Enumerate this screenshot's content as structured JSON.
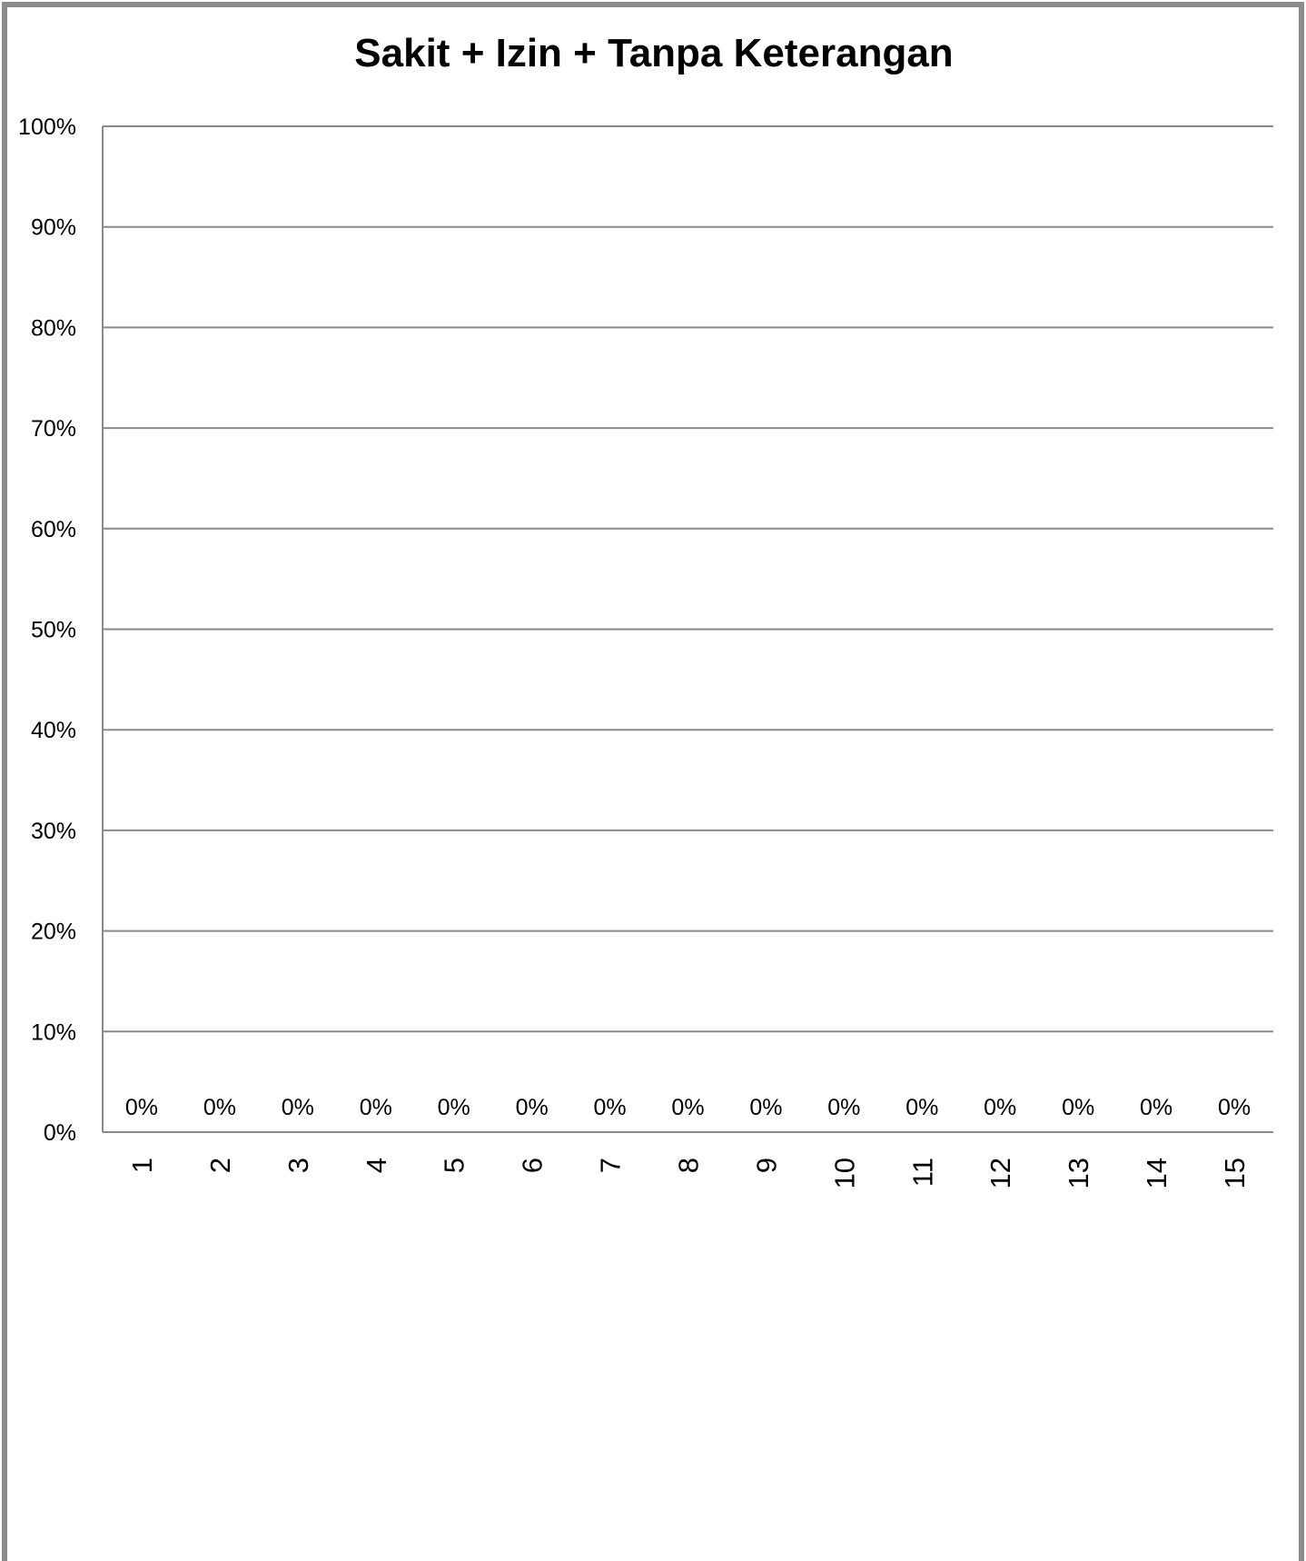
{
  "chart_data": {
    "type": "bar",
    "title": "Sakit + Izin + Tanpa Keterangan",
    "categories": [
      "1",
      "2",
      "3",
      "4",
      "5",
      "6",
      "7",
      "8",
      "9",
      "10",
      "11",
      "12",
      "13",
      "14",
      "15"
    ],
    "values": [
      0,
      0,
      0,
      0,
      0,
      0,
      0,
      0,
      0,
      0,
      0,
      0,
      0,
      0,
      0
    ],
    "data_labels": [
      "0%",
      "0%",
      "0%",
      "0%",
      "0%",
      "0%",
      "0%",
      "0%",
      "0%",
      "0%",
      "0%",
      "0%",
      "0%",
      "0%",
      "0%"
    ],
    "y_ticks": [
      0,
      10,
      20,
      30,
      40,
      50,
      60,
      70,
      80,
      90,
      100
    ],
    "y_tick_labels": [
      "0%",
      "10%",
      "20%",
      "30%",
      "40%",
      "50%",
      "60%",
      "70%",
      "80%",
      "90%",
      "100%"
    ],
    "ylim": [
      0,
      100
    ],
    "y_unit": "percent",
    "xlabel": "",
    "ylabel": "",
    "grid": true,
    "legend": "none",
    "x_tick_rotation": "vertical",
    "colors": {
      "gridline": "#898989",
      "border": "#8c8c8c",
      "bar": "#4f81bd",
      "text": "#000000",
      "background": "#ffffff"
    }
  }
}
